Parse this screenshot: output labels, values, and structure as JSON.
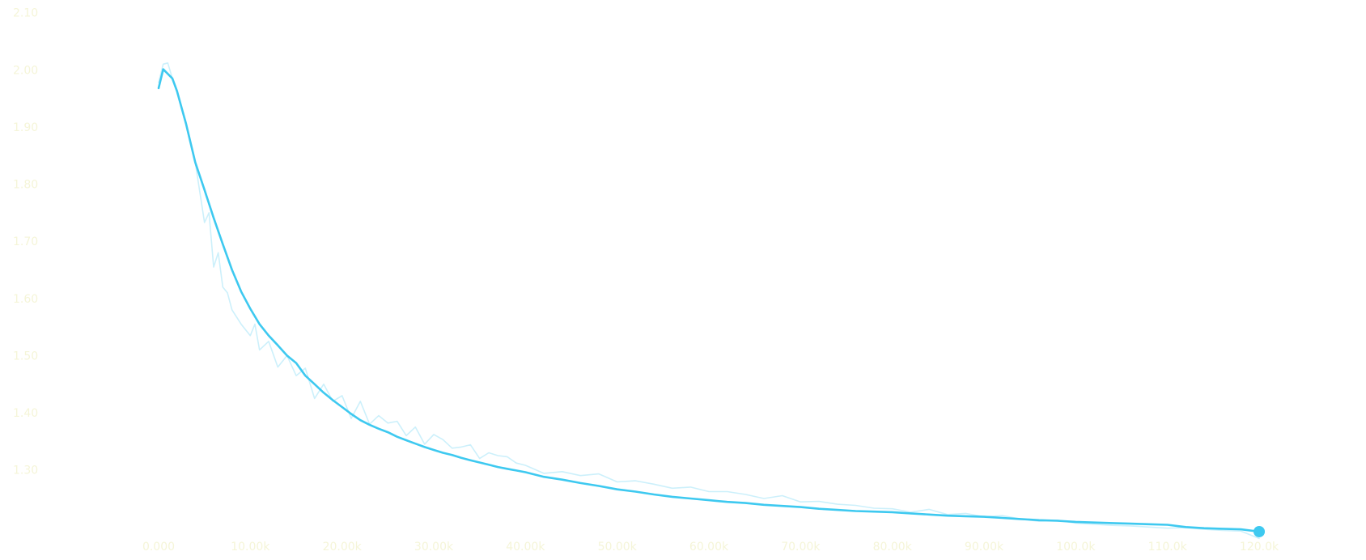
{
  "chart_data": {
    "type": "line",
    "title": "",
    "xlabel": "",
    "ylabel": "",
    "xlim": [
      0,
      120000
    ],
    "ylim": [
      1.2,
      2.1
    ],
    "x_ticks": [
      "0.000",
      "10.00k",
      "20.00k",
      "30.00k",
      "40.00k",
      "50.00k",
      "60.00k",
      "70.00k",
      "80.00k",
      "90.00k",
      "100.0k",
      "110.0k",
      "120.0k"
    ],
    "y_ticks": [
      {
        "value": 1.3,
        "label": "1.30"
      },
      {
        "value": 1.4,
        "label": "1.40"
      },
      {
        "value": 1.5,
        "label": "1.50"
      },
      {
        "value": 1.6,
        "label": "1.60"
      },
      {
        "value": 1.7,
        "label": "1.70"
      },
      {
        "value": 1.8,
        "label": "1.80"
      },
      {
        "value": 1.9,
        "label": "1.90"
      },
      {
        "value": 2.0,
        "label": "2.00"
      },
      {
        "value": 2.1,
        "label": "2.10"
      }
    ],
    "grid": false,
    "colors": {
      "line": "#3ec9f0",
      "raw": "#c6eefb",
      "ticks": "#f5f5d8"
    },
    "series": [
      {
        "role": "raw",
        "x": [
          0,
          500,
          1000,
          1500,
          2000,
          3000,
          4000,
          5000,
          5500,
          6000,
          6500,
          7000,
          7500,
          8000,
          9000,
          10000,
          10500,
          11000,
          12000,
          13000,
          14000,
          15000,
          16000,
          17000,
          18000,
          19000,
          20000,
          21000,
          22000,
          23000,
          24000,
          25000,
          26000,
          27000,
          28000,
          29000,
          30000,
          31000,
          32000,
          33000,
          34000,
          35000,
          36000,
          37000,
          38000,
          39000,
          40000,
          42000,
          44000,
          46000,
          48000,
          50000,
          52000,
          54000,
          56000,
          58000,
          60000,
          62000,
          64000,
          66000,
          68000,
          70000,
          72000,
          74000,
          76000,
          78000,
          80000,
          82000,
          84000,
          86000,
          88000,
          90000,
          92000,
          94000,
          96000,
          98000,
          100000,
          102000,
          104000,
          106000,
          108000,
          110000,
          112000,
          114000,
          116000,
          118000,
          120000
        ],
        "y": [
          1.978,
          2.01,
          2.012,
          1.985,
          1.962,
          1.908,
          1.838,
          1.733,
          1.75,
          1.655,
          1.68,
          1.62,
          1.61,
          1.58,
          1.555,
          1.535,
          1.555,
          1.51,
          1.525,
          1.48,
          1.5,
          1.465,
          1.478,
          1.425,
          1.45,
          1.42,
          1.43,
          1.39,
          1.42,
          1.38,
          1.395,
          1.382,
          1.385,
          1.36,
          1.375,
          1.345,
          1.362,
          1.353,
          1.338,
          1.34,
          1.344,
          1.32,
          1.33,
          1.325,
          1.323,
          1.312,
          1.308,
          1.294,
          1.297,
          1.29,
          1.293,
          1.279,
          1.281,
          1.275,
          1.268,
          1.27,
          1.262,
          1.262,
          1.257,
          1.25,
          1.255,
          1.244,
          1.245,
          1.24,
          1.238,
          1.233,
          1.232,
          1.226,
          1.231,
          1.222,
          1.224,
          1.218,
          1.22,
          1.214,
          1.21,
          1.212,
          1.207,
          1.205,
          1.203,
          1.202,
          1.2,
          1.198,
          1.199,
          1.196,
          1.194,
          1.193,
          1.18
        ]
      },
      {
        "role": "smoothed",
        "x": [
          0,
          500,
          1500,
          2000,
          3000,
          4000,
          5000,
          6000,
          7000,
          8000,
          9000,
          10000,
          11000,
          12000,
          13000,
          14000,
          15000,
          16000,
          17000,
          18000,
          19000,
          20000,
          21000,
          22000,
          23000,
          24000,
          25000,
          26000,
          27000,
          28000,
          29000,
          30000,
          31000,
          32000,
          33000,
          34000,
          35000,
          36000,
          37000,
          38000,
          39000,
          40000,
          42000,
          44000,
          46000,
          48000,
          50000,
          52000,
          54000,
          56000,
          58000,
          60000,
          62000,
          64000,
          66000,
          68000,
          70000,
          72000,
          74000,
          76000,
          78000,
          80000,
          82000,
          84000,
          86000,
          88000,
          90000,
          92000,
          94000,
          96000,
          98000,
          100000,
          102000,
          104000,
          106000,
          108000,
          110000,
          112000,
          114000,
          116000,
          118000,
          120000
        ],
        "y": [
          1.968,
          2.001,
          1.985,
          1.963,
          1.905,
          1.838,
          1.79,
          1.741,
          1.695,
          1.65,
          1.612,
          1.582,
          1.555,
          1.535,
          1.518,
          1.5,
          1.487,
          1.465,
          1.45,
          1.435,
          1.422,
          1.41,
          1.398,
          1.387,
          1.379,
          1.372,
          1.366,
          1.358,
          1.352,
          1.346,
          1.34,
          1.335,
          1.33,
          1.326,
          1.321,
          1.317,
          1.313,
          1.309,
          1.305,
          1.302,
          1.299,
          1.296,
          1.288,
          1.283,
          1.277,
          1.272,
          1.266,
          1.262,
          1.257,
          1.253,
          1.25,
          1.247,
          1.244,
          1.242,
          1.239,
          1.237,
          1.235,
          1.232,
          1.23,
          1.228,
          1.227,
          1.226,
          1.224,
          1.222,
          1.22,
          1.219,
          1.218,
          1.216,
          1.214,
          1.212,
          1.211,
          1.209,
          1.208,
          1.207,
          1.206,
          1.205,
          1.204,
          1.2,
          1.198,
          1.197,
          1.196,
          1.192
        ]
      }
    ]
  }
}
